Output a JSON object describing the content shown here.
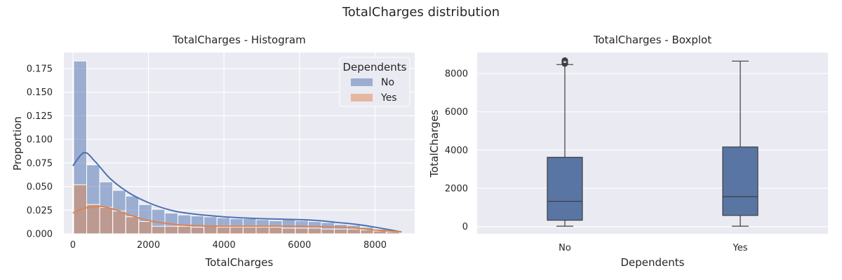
{
  "figure": {
    "title": "TotalCharges distribution"
  },
  "colors": {
    "background": "#ffffff",
    "panel": "#eaeaf2",
    "grid": "#ffffff",
    "no": "#4c72b0",
    "yes": "#dd8452",
    "box_fill": "#5975a4",
    "box_edge": "#3d3d3d"
  },
  "chart_data": [
    {
      "type": "bar",
      "subtype": "histogram",
      "title": "TotalCharges - Histogram",
      "xlabel": "TotalCharges",
      "ylabel": "Proportion",
      "xlim": [
        -240,
        9050
      ],
      "ylim": [
        0,
        0.192
      ],
      "xticks": [
        0,
        2000,
        4000,
        6000,
        8000
      ],
      "yticks": [
        0,
        0.025,
        0.05,
        0.075,
        0.1,
        0.125,
        0.15,
        0.175
      ],
      "ytick_labels": [
        "0.000",
        "0.025",
        "0.050",
        "0.075",
        "0.100",
        "0.125",
        "0.150",
        "0.175"
      ],
      "grid": true,
      "legend": {
        "title": "Dependents",
        "placement": "top-right",
        "entries": [
          "No",
          "Yes"
        ]
      },
      "bin_edges": [
        18.8,
        364,
        709,
        1054,
        1399,
        1744,
        2090,
        2435,
        2780,
        3125,
        3470,
        3816,
        4161,
        4506,
        4851,
        5196,
        5542,
        5887,
        6232,
        6577,
        6922,
        7268,
        7613,
        7958,
        8303,
        8648
      ],
      "series": [
        {
          "name": "No",
          "values": [
            0.183,
            0.073,
            0.055,
            0.046,
            0.04,
            0.031,
            0.026,
            0.022,
            0.02,
            0.019,
            0.018,
            0.017,
            0.016,
            0.016,
            0.015,
            0.014,
            0.015,
            0.014,
            0.013,
            0.012,
            0.01,
            0.009,
            0.007,
            0.005,
            0.003
          ],
          "kde": {
            "x": [
              0,
              300,
              600,
              1000,
              1500,
              2000,
              2500,
              3000,
              4000,
              5000,
              6000,
              6500,
              7000,
              7500,
              8000,
              8700
            ],
            "y": [
              0.072,
              0.086,
              0.076,
              0.058,
              0.043,
              0.033,
              0.026,
              0.022,
              0.018,
              0.016,
              0.015,
              0.014,
              0.012,
              0.01,
              0.007,
              0.002
            ]
          }
        },
        {
          "name": "Yes",
          "values": [
            0.052,
            0.031,
            0.028,
            0.024,
            0.018,
            0.013,
            0.008,
            0.008,
            0.008,
            0.007,
            0.008,
            0.007,
            0.007,
            0.007,
            0.007,
            0.007,
            0.006,
            0.006,
            0.006,
            0.005,
            0.005,
            0.005,
            0.004,
            0.003,
            0.002
          ],
          "kde": {
            "x": [
              0,
              300,
              700,
              1000,
              1500,
              2000,
              2500,
              3000,
              4000,
              5000,
              6000,
              7000,
              7500,
              8000,
              8700
            ],
            "y": [
              0.022,
              0.027,
              0.029,
              0.027,
              0.02,
              0.014,
              0.011,
              0.009,
              0.008,
              0.008,
              0.008,
              0.007,
              0.006,
              0.004,
              0.002
            ]
          }
        }
      ]
    },
    {
      "type": "boxplot",
      "title": "TotalCharges - Boxplot",
      "xlabel": "Dependents",
      "ylabel": "TotalCharges",
      "ylim": [
        -380,
        9100
      ],
      "yticks": [
        0,
        2000,
        4000,
        6000,
        8000
      ],
      "grid": true,
      "categories": [
        "No",
        "Yes"
      ],
      "boxes": [
        {
          "category": "No",
          "whisker_low": 18.8,
          "q1": 330,
          "median": 1320,
          "q3": 3620,
          "whisker_high": 8470,
          "outliers": [
            8520,
            8570,
            8610,
            8650,
            8680
          ]
        },
        {
          "category": "Yes",
          "whisker_low": 18.8,
          "q1": 580,
          "median": 1560,
          "q3": 4160,
          "whisker_high": 8650,
          "outliers": []
        }
      ]
    }
  ]
}
